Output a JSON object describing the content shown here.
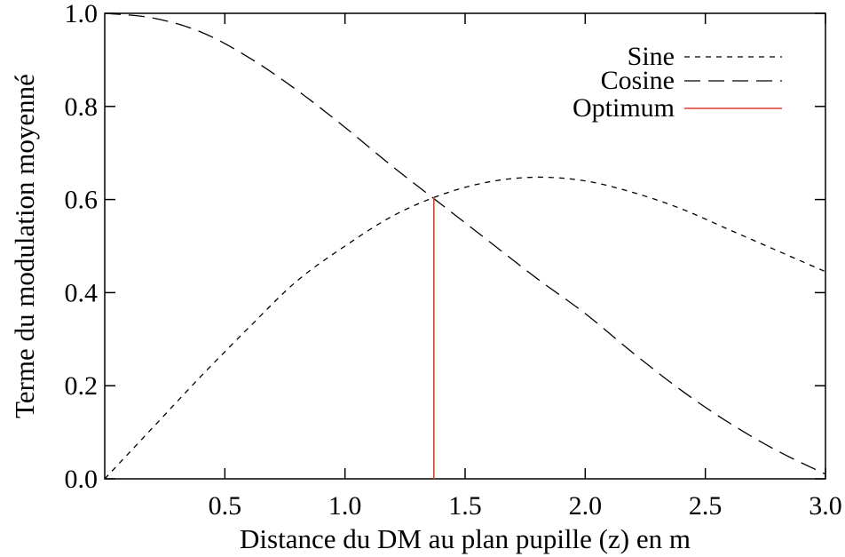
{
  "chart_data": {
    "type": "line",
    "xlabel": "Distance du DM au plan pupille (z) en m",
    "ylabel": "Terme du modulation moyenné",
    "xlim": [
      0.0,
      3.0
    ],
    "ylim": [
      0.0,
      1.0
    ],
    "x_ticks": [
      0.5,
      1.0,
      1.5,
      2.0,
      2.5,
      3.0
    ],
    "x_tick_labels": [
      "0.5",
      "1.0",
      "1.5",
      "2.0",
      "2.5",
      "3.0"
    ],
    "y_ticks": [
      0.0,
      0.2,
      0.4,
      0.6,
      0.8,
      1.0
    ],
    "y_tick_labels": [
      "0.0",
      "0.2",
      "0.4",
      "0.6",
      "0.8",
      "1.0"
    ],
    "grid": false,
    "legend_position": "top-right",
    "series": [
      {
        "name": "Sine",
        "style": "short-dash",
        "color": "#000000",
        "x": [
          0.0,
          0.2,
          0.4,
          0.6,
          0.8,
          1.0,
          1.2,
          1.4,
          1.6,
          1.8,
          2.0,
          2.2,
          2.4,
          2.6,
          2.8,
          3.0
        ],
        "y": [
          0.0,
          0.11,
          0.22,
          0.325,
          0.425,
          0.5,
          0.565,
          0.61,
          0.638,
          0.648,
          0.64,
          0.615,
          0.58,
          0.535,
          0.49,
          0.445
        ]
      },
      {
        "name": "Cosine",
        "style": "long-dash",
        "color": "#000000",
        "x": [
          0.0,
          0.2,
          0.4,
          0.6,
          0.8,
          1.0,
          1.2,
          1.4,
          1.6,
          1.8,
          2.0,
          2.2,
          2.4,
          2.6,
          2.8,
          3.0
        ],
        "y": [
          1.0,
          0.99,
          0.96,
          0.905,
          0.835,
          0.755,
          0.67,
          0.59,
          0.51,
          0.43,
          0.355,
          0.27,
          0.19,
          0.12,
          0.06,
          0.01
        ]
      },
      {
        "name": "Optimum",
        "style": "solid",
        "color": "#e03c31",
        "x": [
          1.37,
          1.37
        ],
        "y": [
          0.0,
          0.605
        ]
      }
    ]
  }
}
